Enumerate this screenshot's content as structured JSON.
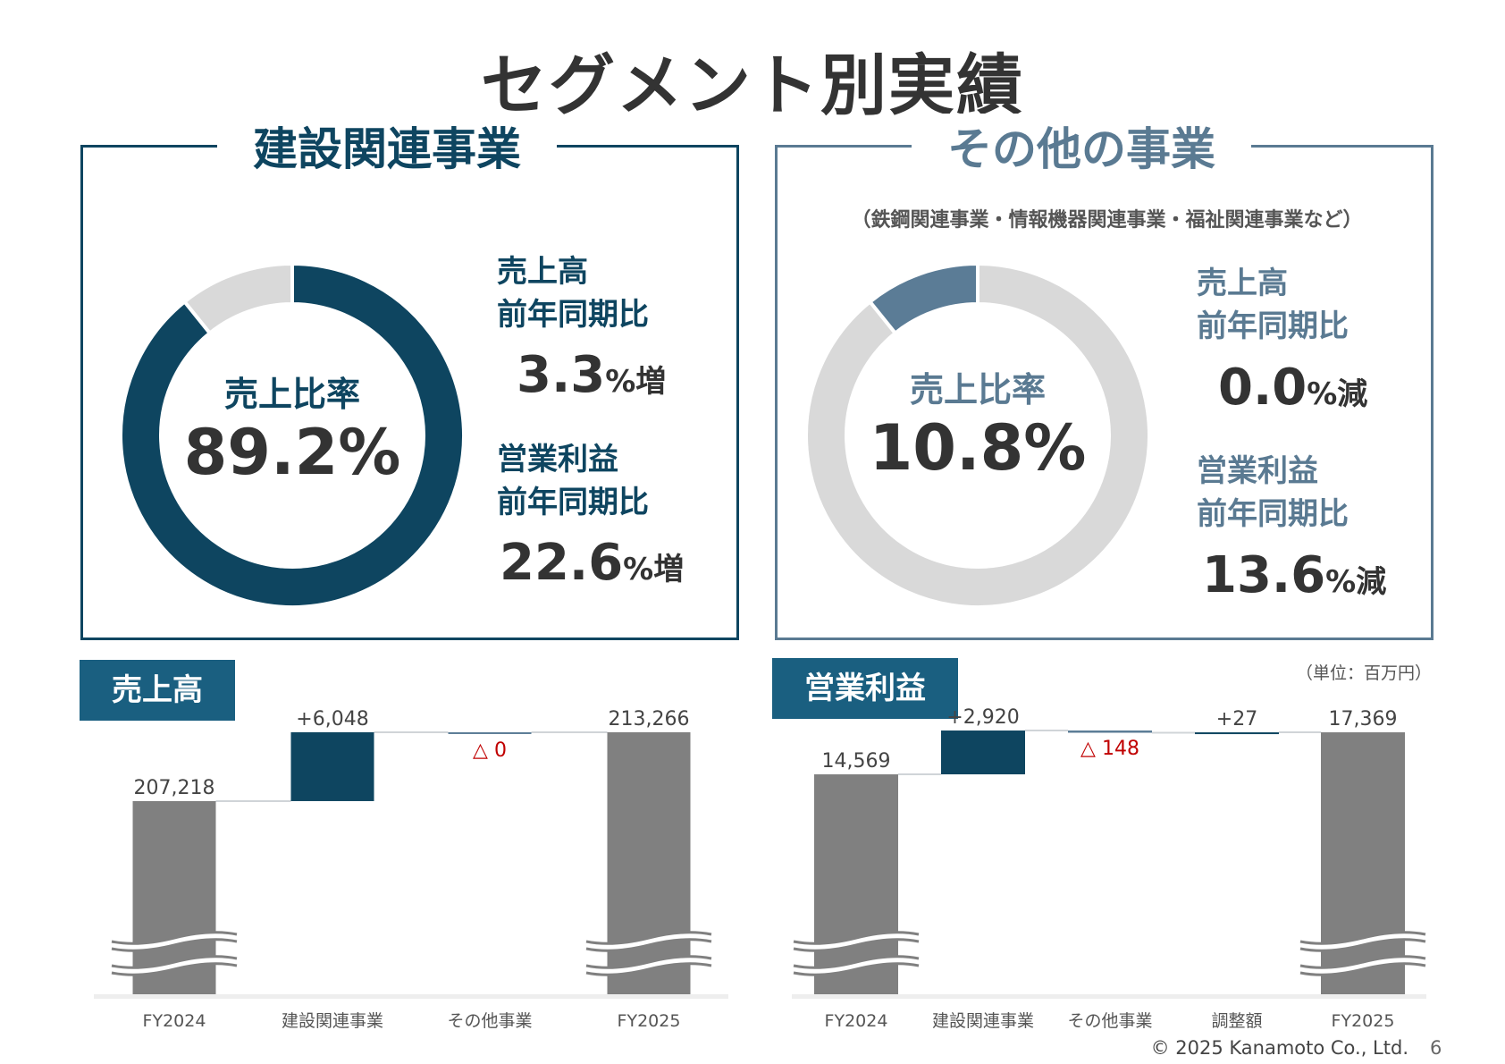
{
  "title": "セグメント別実績",
  "colors": {
    "construction": "#0e4560",
    "other": "#5b7c96",
    "remainder": "#d9d9d9",
    "total_bar": "#808080",
    "decrease": "#c00000",
    "tag": "#1a5f80"
  },
  "construction": {
    "heading": "建設関連事業",
    "ratio_label": "売上比率",
    "ratio": "89.2%",
    "ratio_value": 89.2,
    "sales_label1": "売上高",
    "sales_label2": "前年同期比",
    "sales_value": "3.3",
    "sales_suffix": "%増",
    "op_label1": "営業利益",
    "op_label2": "前年同期比",
    "op_value": "22.6",
    "op_suffix": "%増"
  },
  "other": {
    "heading": "その他の事業",
    "subtitle": "（鉄鋼関連事業・情報機器関連事業・福祉関連事業など）",
    "ratio_label": "売上比率",
    "ratio": "10.8%",
    "ratio_value": 10.8,
    "sales_label1": "売上高",
    "sales_label2": "前年同期比",
    "sales_value": "0.0",
    "sales_suffix": "%減",
    "op_label1": "営業利益",
    "op_label2": "前年同期比",
    "op_value": "13.6",
    "op_suffix": "%減"
  },
  "unit": "（単位：百万円）",
  "footer": "© 2025 Kanamoto Co., Ltd.",
  "page": "6",
  "chart_data": [
    {
      "type": "waterfall",
      "title": "売上高",
      "axis_break": true,
      "categories": [
        "FY2024",
        "建設関連事業",
        "その他事業",
        "FY2025"
      ],
      "values": [
        207218,
        6048,
        0,
        213266
      ],
      "labels": [
        "207,218",
        "+6,048",
        "△ 0",
        "213,266"
      ],
      "kinds": [
        "total",
        "increase",
        "decrease",
        "total"
      ]
    },
    {
      "type": "waterfall",
      "title": "営業利益",
      "axis_break": true,
      "categories": [
        "FY2024",
        "建設関連事業",
        "その他事業",
        "調整額",
        "FY2025"
      ],
      "values": [
        14569,
        2920,
        -148,
        27,
        17369
      ],
      "labels": [
        "14,569",
        "+2,920",
        "△ 148",
        "+27",
        "17,369"
      ],
      "kinds": [
        "total",
        "increase",
        "decrease",
        "increase",
        "total"
      ]
    }
  ]
}
